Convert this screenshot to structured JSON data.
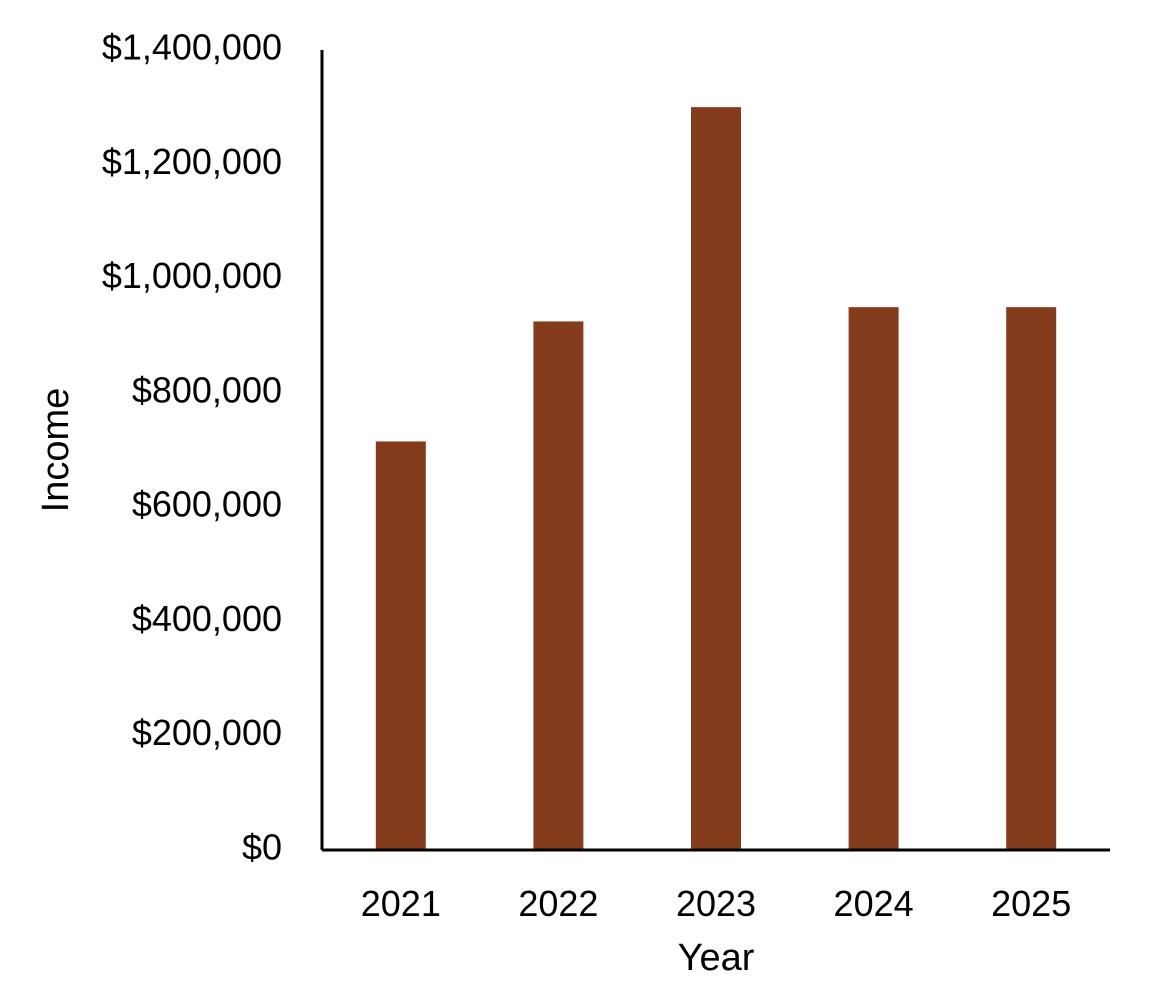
{
  "chart_data": {
    "type": "bar",
    "title": "",
    "xlabel": "Year",
    "ylabel": "Income",
    "categories": [
      "2021",
      "2022",
      "2023",
      "2024",
      "2025"
    ],
    "values": [
      715000,
      925000,
      1300000,
      950000,
      950000
    ],
    "ylim": [
      0,
      1400000
    ],
    "yticks": [
      0,
      200000,
      400000,
      600000,
      800000,
      1000000,
      1200000,
      1400000
    ],
    "ytick_labels": [
      "$0",
      "$200,000",
      "$400,000",
      "$600,000",
      "$800,000",
      "$1,000,000",
      "$1,200,000",
      "$1,400,000"
    ],
    "grid": false,
    "bar_color": "#843C1C"
  }
}
